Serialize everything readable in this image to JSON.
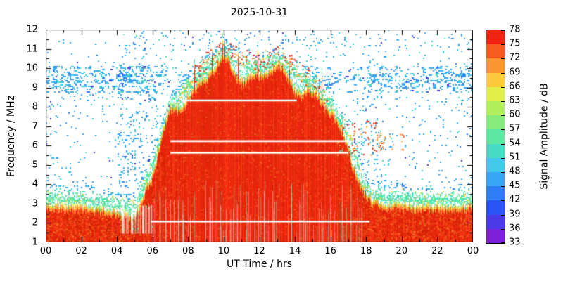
{
  "chart_data": {
    "type": "heatmap",
    "title": "2025-10-31",
    "xlabel": "UT Time / hrs",
    "ylabel": "Frequency / MHz",
    "xlim": [
      0,
      24
    ],
    "ylim": [
      1,
      12
    ],
    "grid": false,
    "x_tick_values": [
      0,
      2,
      4,
      6,
      8,
      10,
      12,
      14,
      16,
      18,
      20,
      22,
      24
    ],
    "x_tick_labels": [
      "00",
      "02",
      "04",
      "06",
      "08",
      "10",
      "12",
      "14",
      "16",
      "18",
      "20",
      "22",
      "00"
    ],
    "y_tick_values": [
      1,
      2,
      3,
      4,
      5,
      6,
      7,
      8,
      9,
      10,
      11,
      12
    ],
    "y_tick_labels": [
      "1",
      "2",
      "3",
      "4",
      "5",
      "6",
      "7",
      "8",
      "9",
      "10",
      "11",
      "12"
    ],
    "colorbar": {
      "label": "Signal Amplitude / dB",
      "min": 33,
      "max": 78,
      "tick_values": [
        33,
        36,
        39,
        42,
        45,
        48,
        51,
        54,
        57,
        60,
        63,
        66,
        69,
        72,
        75,
        78
      ],
      "colors": [
        "#7d20d8",
        "#4b3ae8",
        "#2b53f5",
        "#2f7df8",
        "#38a5f5",
        "#41c8ea",
        "#46dcc3",
        "#5ce8a0",
        "#85ec7c",
        "#b2ee5c",
        "#e2ee48",
        "#fcc93c",
        "#fc9630",
        "#f75c1e",
        "#ee2410"
      ]
    },
    "red_region_envelope": {
      "description": "Top frequency (MHz) of the saturated red (~75-78 dB) signal region versus UT hour; daytime ionospheric broadening between ~06 and ~18 UT",
      "hours": [
        0,
        1,
        2,
        3,
        4,
        5,
        6,
        7,
        8,
        9,
        10,
        11,
        12,
        13,
        14,
        15,
        16,
        17,
        18,
        19,
        20,
        21,
        22,
        23,
        24
      ],
      "top_mhz": [
        3.0,
        2.9,
        2.9,
        2.8,
        2.6,
        2.4,
        4.8,
        7.6,
        8.8,
        9.7,
        10.3,
        9.9,
        9.7,
        10.0,
        9.4,
        8.7,
        7.7,
        6.2,
        3.3,
        3.0,
        3.0,
        2.9,
        2.9,
        2.9,
        3.0
      ]
    },
    "night_band": {
      "freq_mhz": [
        1.0,
        3.0
      ],
      "amplitude_db": 78,
      "description": "persistent strong low-frequency red band across all 24 hours with orange/green/cyan fringe up to ~3.5 MHz"
    },
    "interference_lines_white": [
      {
        "freq_mhz": 8.35,
        "start_hr": 7.6,
        "end_hr": 14.1
      },
      {
        "freq_mhz": 6.25,
        "start_hr": 7.0,
        "end_hr": 17.2
      },
      {
        "freq_mhz": 5.65,
        "start_hr": 7.0,
        "end_hr": 17.0
      },
      {
        "freq_mhz": 2.1,
        "start_hr": 5.9,
        "end_hr": 18.2
      }
    ],
    "noise_bands": [
      {
        "freq_mhz": [
          8.8,
          10.1
        ],
        "amplitude_db": 46,
        "description": "dense light-blue scatter band present all day"
      },
      {
        "freq_mhz": [
          3.0,
          12.0
        ],
        "amplitude_db": 45,
        "description": "sparse blue/cyan background speckle noise"
      },
      {
        "freq_mhz": [
          5.5,
          7.3
        ],
        "hours": [
          16.2,
          19.0
        ],
        "amplitude_db": 70,
        "description": "scattered orange/red specks near sunset"
      }
    ]
  }
}
